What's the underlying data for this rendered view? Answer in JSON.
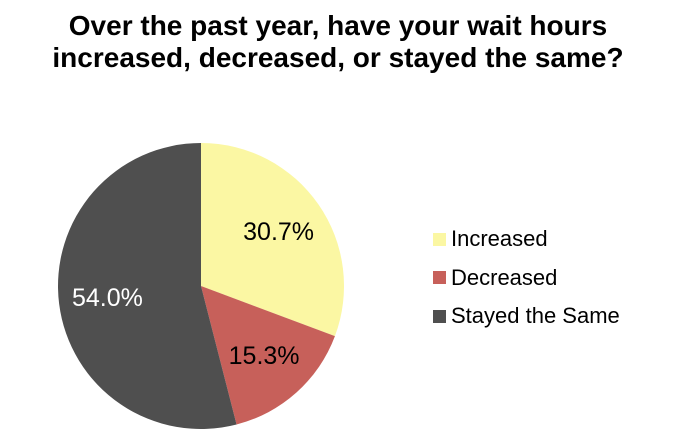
{
  "title": {
    "lines": [
      "Over the past year, have your wait hours",
      "increased, decreased, or stayed the same?"
    ]
  },
  "chart_data": {
    "type": "pie",
    "title": "Over the past year, have your wait hours increased, decreased, or stayed the same?",
    "start_angle_deg": 0,
    "direction": "clockwise",
    "legend_position": "right",
    "background_color": "#ffffff",
    "title_color": "#000000",
    "slices": [
      {
        "label": "Increased",
        "value": 30.7,
        "display": "30.7%",
        "color": "#FBF7A3",
        "label_color": "#000000"
      },
      {
        "label": "Decreased",
        "value": 15.3,
        "display": "15.3%",
        "color": "#C7605A",
        "label_color": "#000000"
      },
      {
        "label": "Stayed the Same",
        "value": 54.0,
        "display": "54.0%",
        "color": "#4F4F4F",
        "label_color": "#FFFFFF"
      }
    ]
  }
}
